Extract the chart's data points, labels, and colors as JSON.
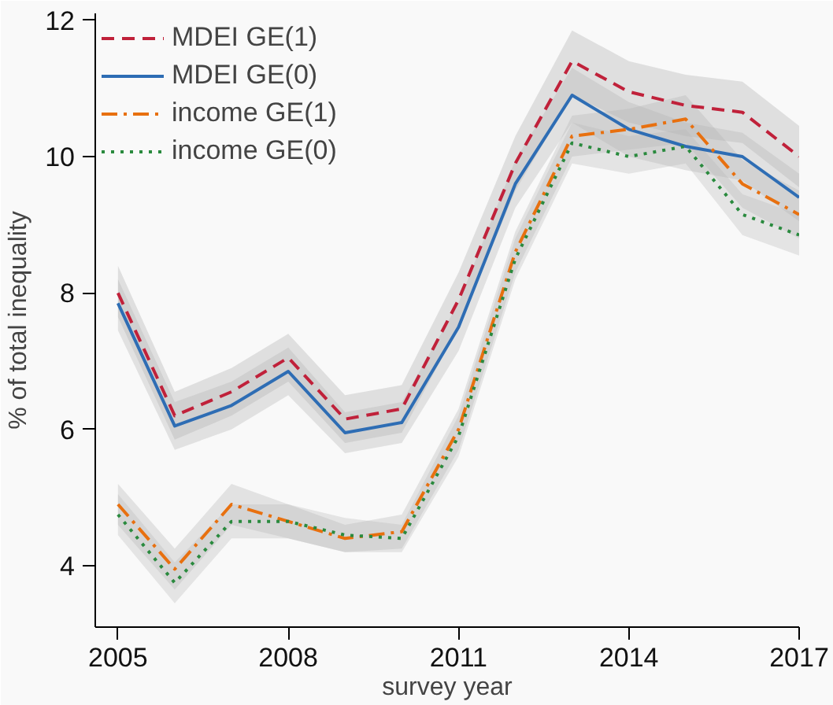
{
  "chart_data": {
    "type": "line",
    "xlabel": "survey year",
    "ylabel": "% of total inequality",
    "x": [
      2005,
      2006,
      2007,
      2008,
      2009,
      2010,
      2011,
      2012,
      2013,
      2014,
      2015,
      2016,
      2017
    ],
    "xlim": [
      2004.6,
      2017
    ],
    "ylim": [
      3.1,
      12.1
    ],
    "xticks": [
      2005,
      2008,
      2011,
      2014,
      2017
    ],
    "yticks": [
      4,
      6,
      8,
      10,
      12
    ],
    "grid": false,
    "legend": "top left",
    "marker": "none",
    "series": [
      {
        "name": "MDEI GE(1)",
        "color": "#c0213a",
        "line_style": "dashed",
        "values": [
          8.0,
          6.2,
          6.55,
          7.05,
          6.15,
          6.3,
          7.9,
          9.9,
          11.4,
          10.95,
          10.75,
          10.65,
          10.0
        ],
        "lower": [
          7.65,
          5.85,
          6.2,
          6.7,
          5.8,
          5.95,
          7.5,
          9.5,
          10.9,
          10.5,
          10.3,
          10.2,
          9.55
        ],
        "upper": [
          8.4,
          6.55,
          6.9,
          7.4,
          6.5,
          6.65,
          8.3,
          10.3,
          11.85,
          11.4,
          11.2,
          11.1,
          10.45
        ]
      },
      {
        "name": "MDEI GE(0)",
        "color": "#2e6db4",
        "line_style": "solid",
        "values": [
          7.85,
          6.05,
          6.35,
          6.85,
          5.95,
          6.1,
          7.5,
          9.6,
          10.9,
          10.4,
          10.15,
          10.0,
          9.4
        ],
        "lower": [
          7.45,
          5.7,
          6.0,
          6.5,
          5.65,
          5.8,
          7.15,
          9.25,
          10.5,
          10.0,
          9.8,
          9.65,
          9.05
        ],
        "upper": [
          8.2,
          6.4,
          6.7,
          7.2,
          6.25,
          6.4,
          7.85,
          9.95,
          11.3,
          10.8,
          10.5,
          10.35,
          9.75
        ]
      },
      {
        "name": "income GE(1)",
        "color": "#e8700f",
        "line_style": "dashdot",
        "values": [
          4.9,
          3.95,
          4.9,
          4.65,
          4.4,
          4.5,
          6.0,
          8.6,
          10.3,
          10.4,
          10.55,
          9.6,
          9.15
        ],
        "lower": [
          4.6,
          3.65,
          4.6,
          4.4,
          4.2,
          4.25,
          5.7,
          8.3,
          10.0,
          10.1,
          10.2,
          9.25,
          8.8
        ],
        "upper": [
          5.2,
          4.25,
          5.2,
          4.9,
          4.6,
          4.75,
          6.3,
          8.9,
          10.6,
          10.7,
          10.9,
          9.95,
          9.5
        ]
      },
      {
        "name": "income GE(0)",
        "color": "#2a8a3e",
        "line_style": "dotted",
        "values": [
          4.75,
          3.75,
          4.65,
          4.65,
          4.45,
          4.4,
          5.9,
          8.5,
          10.2,
          10.0,
          10.15,
          9.15,
          8.85
        ],
        "lower": [
          4.45,
          3.45,
          4.4,
          4.4,
          4.2,
          4.2,
          5.6,
          8.2,
          9.9,
          9.75,
          9.9,
          8.85,
          8.55
        ],
        "upper": [
          5.05,
          4.05,
          4.9,
          4.9,
          4.7,
          4.6,
          6.2,
          8.8,
          10.5,
          10.3,
          10.4,
          9.45,
          9.15
        ]
      }
    ]
  }
}
